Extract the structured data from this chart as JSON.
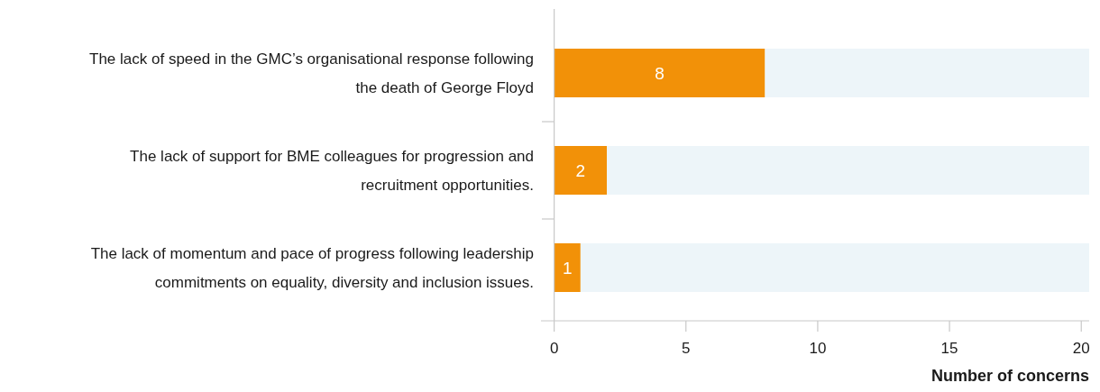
{
  "chart_data": {
    "type": "bar",
    "orientation": "horizontal",
    "stacked": true,
    "xlabel": "Number of concerns",
    "categories": [
      "The lack of speed in the GMC’s organisational response following the death of George Floyd",
      "The lack of support for BME colleagues for progression and recruitment opportunities.",
      "The lack of momentum and pace of progress following leadership commitments on equality, diversity and inclusion issues."
    ],
    "series": [
      {
        "color": "#f29108",
        "values": [
          8,
          2,
          1
        ],
        "value_labels": [
          "8",
          "2",
          "1"
        ]
      },
      {
        "color": "#edf5f9",
        "values": [
          12.3,
          18.3,
          19.3
        ]
      }
    ],
    "xlim": [
      -0.5,
      20.3
    ],
    "xticks": [
      0,
      5,
      10,
      15,
      20
    ],
    "grid": false
  }
}
